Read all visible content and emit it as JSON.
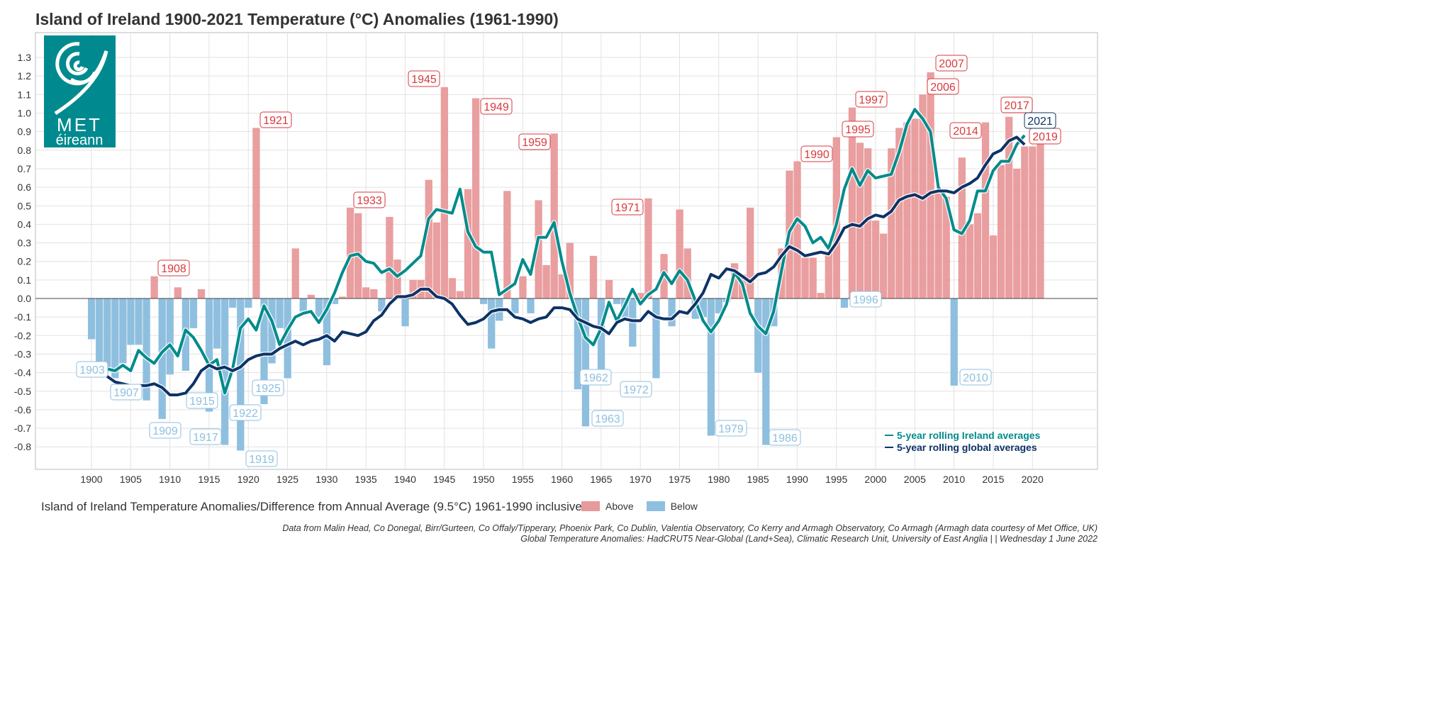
{
  "colors": {
    "above": "#e8999a",
    "below": "#8fbfdf",
    "ireland": "#008b8b",
    "global": "#0d3366",
    "label_red": "#d9393d",
    "label_blue": "#8fbfdf",
    "logo": "#008a8f"
  },
  "logo": {
    "line1": "MET",
    "line2": "éireann"
  },
  "legend": {
    "ireland": "5-year rolling Ireland averages",
    "global": "5-year rolling global averages",
    "above": "Above",
    "below": "Below"
  },
  "caption": "Island of Ireland Temperature Anomalies/Difference from Annual Average (9.5°C) 1961-1990 inclusive",
  "source_line1": "Data from Malin Head, Co Donegal, Birr/Gurteen, Co Offaly/Tipperary, Phoenix Park, Co Dublin, Valentia Observatory, Co Kerry and Armagh Observatory, Co Armagh (Armagh data courtesy of Met Office, UK)",
  "source_line2": "Global Temperature Anomalies: HadCRUT5 Near-Global (Land+Sea), Climatic Research Unit, University of East Anglia |  | Wednesday 1 June 2022",
  "chart_data": {
    "type": "bar",
    "title": "Island of Ireland 1900-2021 Temperature (°C) Anomalies (1961-1990)",
    "xlabel": "",
    "ylabel": "",
    "ylim": [
      -0.9,
      1.4
    ],
    "yticks": [
      1.3,
      1.2,
      1.1,
      1.0,
      0.9,
      0.8,
      0.7,
      0.6,
      0.5,
      0.4,
      0.3,
      0.2,
      0.1,
      0.0,
      -0.1,
      -0.2,
      -0.3,
      -0.4,
      -0.5,
      -0.6,
      -0.7,
      -0.8
    ],
    "ytick_labels": [
      "1.3",
      "1.2",
      "1.1",
      "1.0",
      "0.9",
      "0.8",
      "0.7",
      "0.6",
      "0.5",
      "0.4",
      "0.3",
      "0.2",
      "0.1",
      "0.0",
      "-0.1",
      "-0.2",
      "-0.3",
      "-0.4",
      "-0.5",
      "-0.6",
      "-0.7",
      "-0.8"
    ],
    "xticks": [
      "1900",
      "1905",
      "1910",
      "1915",
      "1920",
      "1925",
      "1930",
      "1935",
      "1940",
      "1945",
      "1950",
      "1955",
      "1960",
      "1965",
      "1970",
      "1975",
      "1980",
      "1985",
      "1990",
      "1995",
      "2000",
      "2005",
      "2010",
      "2015",
      "2020"
    ],
    "start_year": 1900,
    "anomalies": [
      -0.22,
      -0.35,
      -0.38,
      -0.43,
      -0.35,
      -0.25,
      -0.25,
      -0.55,
      0.12,
      -0.65,
      -0.41,
      0.06,
      -0.39,
      -0.16,
      0.05,
      -0.61,
      -0.27,
      -0.79,
      -0.05,
      -0.82,
      -0.05,
      0.92,
      -0.57,
      -0.35,
      -0.16,
      -0.43,
      0.27,
      -0.07,
      0.02,
      -0.1,
      -0.36,
      -0.03,
      0.01,
      0.49,
      0.46,
      0.06,
      0.05,
      -0.07,
      0.44,
      0.21,
      -0.15,
      0.1,
      0.1,
      0.64,
      0.41,
      1.14,
      0.11,
      0.04,
      0.59,
      1.08,
      -0.03,
      -0.27,
      -0.12,
      0.58,
      -0.08,
      0.12,
      -0.08,
      0.53,
      0.18,
      0.89,
      0.13,
      0.3,
      -0.49,
      -0.69,
      0.23,
      -0.4,
      0.1,
      -0.03,
      -0.1,
      -0.26,
      0.03,
      0.54,
      -0.43,
      0.24,
      -0.15,
      0.48,
      0.27,
      -0.11,
      -0.1,
      -0.74,
      -0.08,
      -0.02,
      0.19,
      0.13,
      0.49,
      -0.4,
      -0.79,
      -0.15,
      0.27,
      0.69,
      0.74,
      0.22,
      0.22,
      0.03,
      0.25,
      0.87,
      -0.05,
      1.03,
      0.84,
      0.81,
      0.42,
      0.35,
      0.81,
      0.92,
      0.95,
      0.97,
      1.1,
      1.22,
      0.58,
      0.55,
      -0.47,
      0.76,
      0.4,
      0.46,
      0.95,
      0.34,
      0.72,
      0.98,
      0.7,
      0.82,
      0.82,
      0.85
    ],
    "series": [
      {
        "name": "5-year rolling Ireland averages",
        "start_year": 1902,
        "values": [
          -0.38,
          -0.39,
          -0.36,
          -0.39,
          -0.28,
          -0.32,
          -0.35,
          -0.29,
          -0.25,
          -0.31,
          -0.17,
          -0.21,
          -0.28,
          -0.36,
          -0.33,
          -0.51,
          -0.38,
          -0.16,
          -0.11,
          -0.17,
          -0.04,
          -0.12,
          -0.25,
          -0.17,
          -0.1,
          -0.08,
          -0.07,
          -0.13,
          -0.06,
          0.03,
          0.14,
          0.23,
          0.24,
          0.2,
          0.19,
          0.14,
          0.16,
          0.12,
          0.15,
          0.19,
          0.23,
          0.43,
          0.48,
          0.47,
          0.46,
          0.59,
          0.36,
          0.28,
          0.25,
          0.25,
          0.02,
          0.05,
          0.08,
          0.21,
          0.13,
          0.33,
          0.33,
          0.41,
          0.2,
          0.03,
          -0.1,
          -0.21,
          -0.25,
          -0.16,
          -0.02,
          -0.12,
          -0.04,
          0.05,
          -0.03,
          0.02,
          0.05,
          0.14,
          0.08,
          0.15,
          0.1,
          -0.01,
          -0.12,
          -0.18,
          -0.12,
          -0.03,
          0.14,
          0.08,
          -0.08,
          -0.15,
          -0.19,
          -0.07,
          0.15,
          0.36,
          0.43,
          0.39,
          0.3,
          0.33,
          0.27,
          0.4,
          0.59,
          0.7,
          0.61,
          0.69,
          0.65,
          0.66,
          0.67,
          0.79,
          0.94,
          1.02,
          0.97,
          0.9,
          0.6,
          0.54,
          0.37,
          0.35,
          0.42,
          0.58,
          0.58,
          0.69,
          0.74,
          0.74,
          0.83,
          0.88
        ]
      },
      {
        "name": "5-year rolling global averages",
        "start_year": 1902,
        "values": [
          -0.42,
          -0.45,
          -0.46,
          -0.47,
          -0.47,
          -0.47,
          -0.46,
          -0.48,
          -0.52,
          -0.52,
          -0.51,
          -0.46,
          -0.39,
          -0.36,
          -0.38,
          -0.37,
          -0.39,
          -0.37,
          -0.33,
          -0.31,
          -0.3,
          -0.3,
          -0.27,
          -0.25,
          -0.23,
          -0.25,
          -0.23,
          -0.22,
          -0.2,
          -0.23,
          -0.18,
          -0.19,
          -0.2,
          -0.18,
          -0.12,
          -0.09,
          -0.03,
          0.01,
          0.01,
          0.02,
          0.05,
          0.05,
          0.01,
          0.0,
          -0.03,
          -0.09,
          -0.14,
          -0.13,
          -0.11,
          -0.07,
          -0.06,
          -0.06,
          -0.1,
          -0.11,
          -0.13,
          -0.11,
          -0.1,
          -0.05,
          -0.05,
          -0.06,
          -0.11,
          -0.13,
          -0.15,
          -0.16,
          -0.19,
          -0.13,
          -0.11,
          -0.12,
          -0.12,
          -0.07,
          -0.1,
          -0.11,
          -0.11,
          -0.07,
          -0.08,
          -0.03,
          0.03,
          0.13,
          0.11,
          0.16,
          0.15,
          0.12,
          0.09,
          0.13,
          0.14,
          0.17,
          0.23,
          0.28,
          0.26,
          0.23,
          0.24,
          0.25,
          0.24,
          0.3,
          0.38,
          0.4,
          0.39,
          0.43,
          0.45,
          0.44,
          0.47,
          0.53,
          0.55,
          0.56,
          0.54,
          0.57,
          0.58,
          0.58,
          0.57,
          0.6,
          0.62,
          0.65,
          0.72,
          0.78,
          0.8,
          0.85,
          0.87,
          0.83
        ]
      }
    ],
    "annotations": [
      {
        "text": "1903",
        "kind": "below"
      },
      {
        "text": "1907",
        "kind": "below"
      },
      {
        "text": "1909",
        "kind": "below"
      },
      {
        "text": "1915",
        "kind": "below"
      },
      {
        "text": "1917",
        "kind": "below"
      },
      {
        "text": "1919",
        "kind": "below"
      },
      {
        "text": "1922",
        "kind": "below"
      },
      {
        "text": "1925",
        "kind": "below"
      },
      {
        "text": "1908",
        "kind": "above"
      },
      {
        "text": "1921",
        "kind": "above"
      },
      {
        "text": "1933",
        "kind": "above"
      },
      {
        "text": "1945",
        "kind": "above"
      },
      {
        "text": "1949",
        "kind": "above"
      },
      {
        "text": "1959",
        "kind": "above"
      },
      {
        "text": "1971",
        "kind": "above"
      },
      {
        "text": "1962",
        "kind": "below"
      },
      {
        "text": "1963",
        "kind": "below"
      },
      {
        "text": "1972",
        "kind": "below"
      },
      {
        "text": "1979",
        "kind": "below"
      },
      {
        "text": "1986",
        "kind": "below"
      },
      {
        "text": "1990",
        "kind": "above"
      },
      {
        "text": "1995",
        "kind": "above"
      },
      {
        "text": "1996",
        "kind": "below"
      },
      {
        "text": "1997",
        "kind": "above"
      },
      {
        "text": "2006",
        "kind": "above"
      },
      {
        "text": "2007",
        "kind": "above"
      },
      {
        "text": "2010",
        "kind": "below"
      },
      {
        "text": "2014",
        "kind": "above"
      },
      {
        "text": "2017",
        "kind": "above"
      },
      {
        "text": "2019",
        "kind": "above"
      },
      {
        "text": "2021",
        "kind": "global"
      }
    ]
  }
}
